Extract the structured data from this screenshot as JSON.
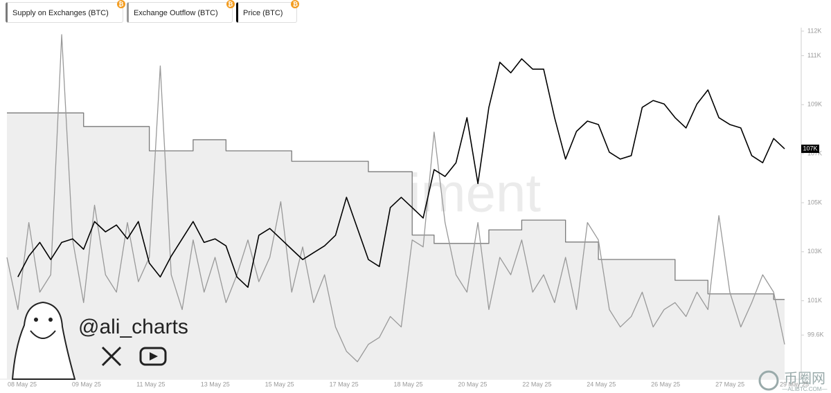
{
  "chart_data": {
    "type": "line",
    "watermark": "santiment",
    "author": "@ali_charts",
    "site_name": "币圈网",
    "site_url": "—ALIBTC.COM—",
    "xtick_labels": [
      "08 May 25",
      "09 May 25",
      "11 May 25",
      "13 May 25",
      "15 May 25",
      "17 May 25",
      "18 May 25",
      "20 May 25",
      "22 May 25",
      "24 May 25",
      "26 May 25",
      "27 May 25",
      "29 May 25"
    ],
    "ylim": [
      97800,
      112000
    ],
    "yticks": [
      {
        "value": 112000,
        "label": "112K"
      },
      {
        "value": 111000,
        "label": "111K"
      },
      {
        "value": 109000,
        "label": "109K"
      },
      {
        "value": 107000,
        "label": "107K"
      },
      {
        "value": 105000,
        "label": "105K"
      },
      {
        "value": 103000,
        "label": "103K"
      },
      {
        "value": 101000,
        "label": "101K"
      },
      {
        "value": 99600,
        "label": "99.6K"
      }
    ],
    "y2lim": [
      0,
      100
    ],
    "series": [
      {
        "name": "Supply on Exchanges (BTC)",
        "color": "#7a7a7a",
        "fill": "#eeeeee",
        "axis": "y2",
        "values": [
          76.5,
          76.5,
          76.5,
          76.5,
          76.5,
          76.5,
          76.5,
          72.6,
          72.6,
          72.6,
          72.6,
          72.6,
          72.6,
          65.6,
          65.6,
          65.6,
          65.6,
          68.8,
          68.8,
          68.8,
          65.6,
          65.6,
          65.6,
          65.6,
          65.6,
          65.6,
          62.6,
          62.6,
          62.6,
          62.6,
          62.6,
          62.6,
          62.6,
          59.6,
          59.6,
          59.6,
          59.6,
          41.4,
          41.4,
          39.0,
          39.0,
          39.0,
          39.0,
          39.0,
          42.9,
          42.9,
          42.9,
          45.7,
          45.7,
          45.7,
          45.7,
          39.4,
          39.4,
          39.4,
          34.4,
          34.4,
          34.4,
          34.4,
          34.4,
          34.4,
          34.4,
          28.4,
          28.4,
          28.4,
          24.5,
          24.5,
          24.5,
          24.5,
          24.5,
          24.5,
          22.9,
          22.9
        ]
      },
      {
        "name": "Exchange Outflow (BTC)",
        "color": "#999999",
        "axis": "y2",
        "values": [
          35,
          20,
          45,
          25,
          30,
          99,
          40,
          22,
          50,
          30,
          25,
          45,
          28,
          35,
          90,
          30,
          20,
          40,
          25,
          35,
          22,
          30,
          40,
          28,
          35,
          51,
          25,
          38,
          22,
          30,
          15,
          8,
          5,
          10,
          12,
          18,
          15,
          40,
          38,
          71,
          45,
          30,
          25,
          45,
          20,
          35,
          30,
          40,
          25,
          30,
          22,
          35,
          20,
          45,
          40,
          20,
          15,
          18,
          25,
          15,
          20,
          22,
          18,
          25,
          20,
          47,
          25,
          15,
          22,
          30,
          25,
          10
        ]
      },
      {
        "name": "Price (BTC)",
        "color": "#000000",
        "values": [
          null,
          101970,
          102820,
          103380,
          102680,
          103380,
          103525,
          103100,
          104230,
          103810,
          104090,
          103525,
          104230,
          102535,
          101970,
          102820,
          103525,
          104230,
          103380,
          103525,
          103240,
          101970,
          101550,
          103670,
          103950,
          103525,
          103100,
          102680,
          102960,
          103240,
          103670,
          105220,
          103950,
          102680,
          102395,
          104800,
          105220,
          104800,
          104375,
          106350,
          106070,
          106630,
          108470,
          105780,
          108890,
          110730,
          110300,
          110870,
          110450,
          110450,
          108470,
          106780,
          107910,
          108330,
          108190,
          107060,
          106780,
          106920,
          108890,
          109170,
          109030,
          108470,
          108050,
          109030,
          109600,
          108470,
          108190,
          108050,
          106920,
          106630,
          107620,
          107200
        ],
        "value_labels": [
          null,
          null,
          null,
          null,
          null,
          null,
          null,
          null,
          null,
          null,
          null,
          null,
          null,
          null,
          null,
          null,
          null,
          null,
          null,
          null,
          null,
          null,
          null,
          null,
          null,
          null,
          null,
          null,
          null,
          null,
          null,
          null,
          null,
          null,
          null,
          null,
          null,
          null,
          null,
          null,
          null,
          null,
          null,
          null,
          null,
          null,
          null,
          null,
          null,
          null,
          null,
          null,
          null,
          null,
          null,
          null,
          null,
          null,
          null,
          null,
          null,
          null,
          null,
          null,
          null,
          null,
          null,
          null,
          null,
          null,
          null,
          "107K"
        ]
      }
    ]
  }
}
